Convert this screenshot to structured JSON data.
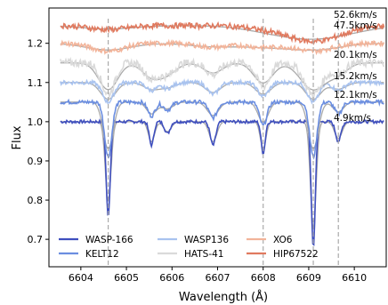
{
  "chart_data": {
    "type": "line",
    "title": "",
    "xlabel": "Wavelength (Å)",
    "ylabel": "Flux",
    "xlim": [
      6603.3,
      6610.7
    ],
    "ylim": [
      0.63,
      1.29
    ],
    "xticks": [
      6604,
      6605,
      6606,
      6607,
      6608,
      6609,
      6610
    ],
    "yticks": [
      0.7,
      0.8,
      0.9,
      1.0,
      1.1,
      1.2
    ],
    "ytick_labels": [
      "0.7",
      "0.8",
      "0.9",
      "1.0",
      "1.1",
      "1.2"
    ],
    "grid": false,
    "legend_position": "lower-left",
    "vertical_lines": [
      6604.6,
      6608.0,
      6609.1,
      6609.65
    ],
    "vertical_line_color": "#aaaaaa",
    "model_color": "#aaaaaa",
    "line_centers": [
      6604.6,
      6605.55,
      6605.9,
      6606.9,
      6608.0,
      6609.1,
      6609.65
    ],
    "series": [
      {
        "name": "WASP-166",
        "color": "#3f4fbe",
        "offset": 1.0,
        "velocity": "4.9km/s",
        "line_depths": [
          0.24,
          0.06,
          0.03,
          0.06,
          0.08,
          0.32,
          0.05
        ],
        "line_widths": [
          0.045,
          0.05,
          0.06,
          0.06,
          0.045,
          0.045,
          0.06
        ]
      },
      {
        "name": "KELT12",
        "color": "#6b8ee0",
        "offset": 1.05,
        "velocity": "12.1km/s",
        "line_depths": [
          0.14,
          0.035,
          0.02,
          0.04,
          0.06,
          0.14,
          0.03
        ],
        "line_widths": [
          0.08,
          0.08,
          0.09,
          0.09,
          0.08,
          0.08,
          0.08
        ]
      },
      {
        "name": "WASP136",
        "color": "#a9c3ef",
        "offset": 1.1,
        "velocity": "15.2km/s",
        "line_depths": [
          0.05,
          0.02,
          0.015,
          0.03,
          0.035,
          0.05,
          0.02
        ],
        "line_widths": [
          0.12,
          0.12,
          0.12,
          0.12,
          0.12,
          0.12,
          0.12
        ]
      },
      {
        "name": "HATS-41",
        "color": "#dadada",
        "offset": 1.15,
        "velocity": "20.1km/s",
        "line_depths": [
          0.08,
          0.04,
          0.03,
          0.03,
          0.06,
          0.08,
          0.03
        ],
        "line_widths": [
          0.15,
          0.15,
          0.15,
          0.15,
          0.15,
          0.2,
          0.15
        ]
      },
      {
        "name": "XO6",
        "color": "#f2b49a",
        "offset": 1.2,
        "velocity": "47.5km/s",
        "line_depths": [
          0.02,
          0.0,
          0.0,
          0.01,
          0.01,
          0.02,
          0.0
        ],
        "line_widths": [
          0.35,
          0.35,
          0.35,
          0.35,
          0.35,
          0.4,
          0.35
        ]
      },
      {
        "name": "HIP67522",
        "color": "#e07a5f",
        "offset": 1.245,
        "velocity": "52.6km/s",
        "line_depths": [
          0.01,
          0.0,
          0.0,
          0.0,
          0.005,
          0.04,
          0.0
        ],
        "line_widths": [
          0.4,
          0.4,
          0.4,
          0.4,
          0.4,
          0.6,
          0.4
        ]
      }
    ]
  }
}
